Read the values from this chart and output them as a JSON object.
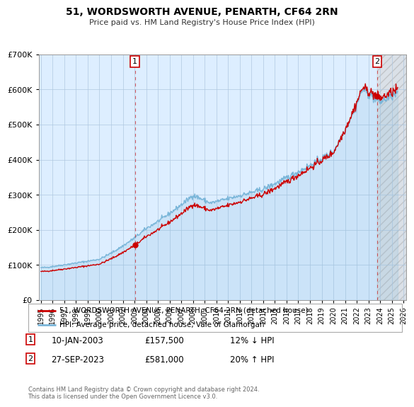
{
  "title": "51, WORDSWORTH AVENUE, PENARTH, CF64 2RN",
  "subtitle": "Price paid vs. HM Land Registry's House Price Index (HPI)",
  "legend_line1": "51, WORDSWORTH AVENUE, PENARTH, CF64 2RN (detached house)",
  "legend_line2": "HPI: Average price, detached house, Vale of Glamorgan",
  "annotation1_date": "10-JAN-2003",
  "annotation1_price": "£157,500",
  "annotation1_hpi": "12% ↓ HPI",
  "annotation2_date": "27-SEP-2023",
  "annotation2_price": "£581,000",
  "annotation2_hpi": "20% ↑ HPI",
  "footer": "Contains HM Land Registry data © Crown copyright and database right 2024.\nThis data is licensed under the Open Government Licence v3.0.",
  "sale1_year": 2003.03,
  "sale1_price": 157500,
  "sale2_year": 2023.74,
  "sale2_price": 581000,
  "hpi_color": "#7ab6d9",
  "sale_color": "#cc0000",
  "chart_bg": "#ddeeff",
  "hatch_bg": "#e8e8e8",
  "background_color": "#ffffff",
  "grid_color": "#b0c8e0",
  "ylim": [
    0,
    700000
  ],
  "xlim_start": 1994.8,
  "xlim_end": 2026.2
}
